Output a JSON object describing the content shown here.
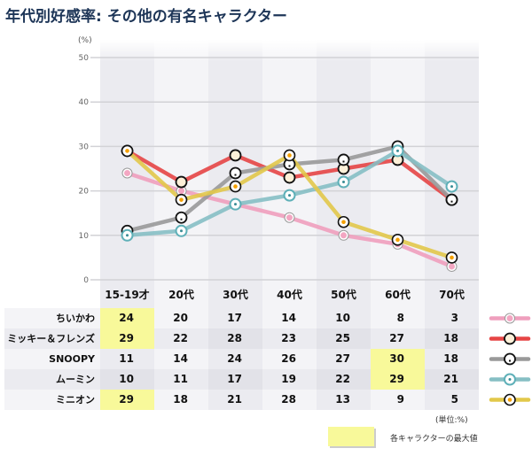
{
  "header": {
    "title": "年代別好感率: その他の有名キャラクター",
    "unit_label": "(%)"
  },
  "chart_data": {
    "type": "line",
    "title": "年代別好感率: その他の有名キャラクター",
    "ylabel": "(%)",
    "xlabel": "",
    "ylim": [
      0,
      50
    ],
    "yticks": [
      0,
      10,
      20,
      30,
      40,
      50
    ],
    "grid": true,
    "categories": [
      "15-19才",
      "20代",
      "30代",
      "40代",
      "50代",
      "60代",
      "70代"
    ],
    "series": [
      {
        "name": "ちいかわ",
        "values": [
          24,
          20,
          17,
          14,
          10,
          8,
          3
        ],
        "color": "#ef9fbd",
        "marker": "chiikawa-face",
        "max_indices": [
          0
        ]
      },
      {
        "name": "ミッキー＆フレンズ",
        "values": [
          29,
          22,
          28,
          23,
          25,
          27,
          18
        ],
        "color": "#e64545",
        "marker": "mickey-face",
        "max_indices": [
          0
        ]
      },
      {
        "name": "SNOOPY",
        "values": [
          11,
          14,
          24,
          26,
          27,
          30,
          18
        ],
        "color": "#999999",
        "marker": "snoopy-face",
        "max_indices": [
          5
        ]
      },
      {
        "name": "ムーミン",
        "values": [
          10,
          11,
          17,
          19,
          22,
          29,
          21
        ],
        "color": "#86bfc4",
        "marker": "moomin-face",
        "max_indices": [
          5
        ]
      },
      {
        "name": "ミニオン",
        "values": [
          29,
          18,
          21,
          28,
          13,
          9,
          5
        ],
        "color": "#e2c84a",
        "marker": "minion-face",
        "max_indices": [
          0
        ]
      }
    ]
  },
  "table": {
    "footnote": "(単位:%)",
    "max_legend_label": "各キャラクターの最大値",
    "highlight_color": "#f8f99a"
  }
}
